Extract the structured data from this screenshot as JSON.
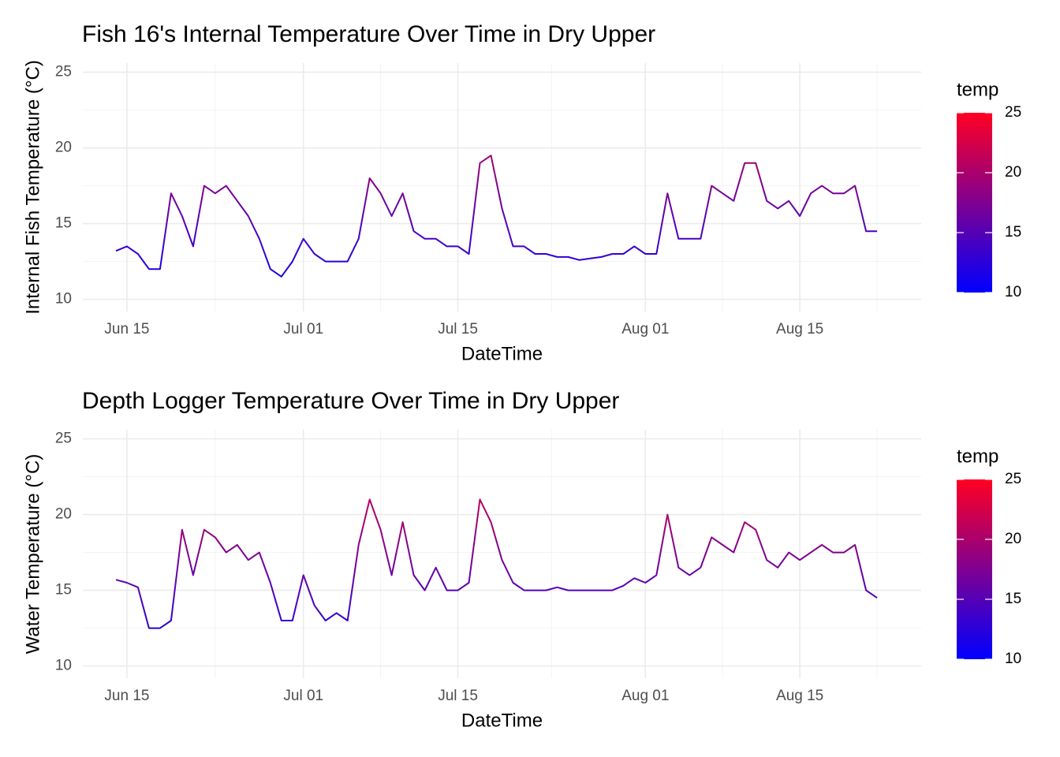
{
  "chart_data": [
    {
      "type": "line",
      "title": "Fish 16's Internal Temperature Over Time in Dry Upper",
      "x_label": "DateTime",
      "y_label": "Internal Fish Temperature (°C)",
      "x": [
        "Jun 14",
        "Jun 15",
        "Jun 16",
        "Jun 17",
        "Jun 18",
        "Jun 19",
        "Jun 20",
        "Jun 21",
        "Jun 22",
        "Jun 23",
        "Jun 24",
        "Jun 25",
        "Jun 26",
        "Jun 27",
        "Jun 28",
        "Jun 29",
        "Jun 30",
        "Jul 01",
        "Jul 02",
        "Jul 03",
        "Jul 04",
        "Jul 05",
        "Jul 06",
        "Jul 07",
        "Jul 08",
        "Jul 09",
        "Jul 10",
        "Jul 11",
        "Jul 12",
        "Jul 13",
        "Jul 14",
        "Jul 15",
        "Jul 16",
        "Jul 17",
        "Jul 18",
        "Jul 19",
        "Jul 20",
        "Jul 21",
        "Jul 22",
        "Jul 23",
        "Jul 24",
        "Jul 25",
        "Jul 26",
        "Jul 27",
        "Jul 28",
        "Jul 29",
        "Jul 30",
        "Jul 31",
        "Aug 01",
        "Aug 02",
        "Aug 03",
        "Aug 04",
        "Aug 05",
        "Aug 06",
        "Aug 07",
        "Aug 08",
        "Aug 09",
        "Aug 10",
        "Aug 11",
        "Aug 12",
        "Aug 13",
        "Aug 14",
        "Aug 15",
        "Aug 16",
        "Aug 17",
        "Aug 18",
        "Aug 19",
        "Aug 20",
        "Aug 21",
        "Aug 22"
      ],
      "values": [
        13.2,
        13.5,
        13,
        12,
        12,
        17,
        15.5,
        13.5,
        17.5,
        17,
        17.5,
        16.5,
        15.5,
        14,
        12,
        11.5,
        12.5,
        14,
        13,
        12.5,
        12.5,
        12.5,
        14,
        18,
        17,
        15.5,
        17,
        14.5,
        14,
        14,
        13.5,
        13.5,
        13,
        19,
        19.5,
        16,
        13.5,
        13.5,
        13,
        13,
        12.8,
        12.8,
        12.6,
        12.7,
        12.8,
        13,
        13,
        13.5,
        13,
        13,
        17,
        14,
        14,
        14,
        17.5,
        17,
        16.5,
        19,
        19,
        16.5,
        16,
        16.5,
        15.5,
        17,
        17.5,
        17,
        17,
        17.5,
        14.5,
        14.5
      ],
      "xlim": [
        "Jun 11",
        "Aug 26"
      ],
      "xticks": [
        "Jun 15",
        "Jul 01",
        "Jul 15",
        "Aug 01",
        "Aug 15"
      ],
      "ylim": [
        9.2,
        25.6
      ],
      "yticks": [
        10,
        15,
        20,
        25
      ],
      "grid": true,
      "color_scale": {
        "title": "temp",
        "limits": [
          10,
          25
        ],
        "ticks": [
          10,
          15,
          20,
          25
        ],
        "low": "#0000ff",
        "high": "#ff0022"
      }
    },
    {
      "type": "line",
      "title": "Depth Logger Temperature Over Time in Dry Upper",
      "x_label": "DateTime",
      "y_label": "Water Temperature (°C)",
      "x": [
        "Jun 14",
        "Jun 15",
        "Jun 16",
        "Jun 17",
        "Jun 18",
        "Jun 19",
        "Jun 20",
        "Jun 21",
        "Jun 22",
        "Jun 23",
        "Jun 24",
        "Jun 25",
        "Jun 26",
        "Jun 27",
        "Jun 28",
        "Jun 29",
        "Jun 30",
        "Jul 01",
        "Jul 02",
        "Jul 03",
        "Jul 04",
        "Jul 05",
        "Jul 06",
        "Jul 07",
        "Jul 08",
        "Jul 09",
        "Jul 10",
        "Jul 11",
        "Jul 12",
        "Jul 13",
        "Jul 14",
        "Jul 15",
        "Jul 16",
        "Jul 17",
        "Jul 18",
        "Jul 19",
        "Jul 20",
        "Jul 21",
        "Jul 22",
        "Jul 23",
        "Jul 24",
        "Jul 25",
        "Jul 26",
        "Jul 27",
        "Jul 28",
        "Jul 29",
        "Jul 30",
        "Jul 31",
        "Aug 01",
        "Aug 02",
        "Aug 03",
        "Aug 04",
        "Aug 05",
        "Aug 06",
        "Aug 07",
        "Aug 08",
        "Aug 09",
        "Aug 10",
        "Aug 11",
        "Aug 12",
        "Aug 13",
        "Aug 14",
        "Aug 15",
        "Aug 16",
        "Aug 17",
        "Aug 18",
        "Aug 19",
        "Aug 20",
        "Aug 21",
        "Aug 22"
      ],
      "values": [
        15.7,
        15.5,
        15.2,
        12.5,
        12.5,
        13,
        19,
        16,
        19,
        18.5,
        17.5,
        18,
        17,
        17.5,
        15.5,
        13,
        13,
        16,
        14,
        13,
        13.5,
        13,
        18,
        21,
        19,
        16,
        19.5,
        16,
        15,
        16.5,
        15,
        15,
        15.5,
        21,
        19.5,
        17,
        15.5,
        15,
        15,
        15,
        15.2,
        15,
        15,
        15,
        15,
        15,
        15.3,
        15.8,
        15.5,
        16,
        20,
        16.5,
        16,
        16.5,
        18.5,
        18,
        17.5,
        19.5,
        19,
        17,
        16.5,
        17.5,
        17,
        17.5,
        18,
        17.5,
        17.5,
        18,
        15,
        14.5
      ],
      "xlim": [
        "Jun 11",
        "Aug 26"
      ],
      "xticks": [
        "Jun 15",
        "Jul 01",
        "Jul 15",
        "Aug 01",
        "Aug 15"
      ],
      "ylim": [
        9.2,
        25.6
      ],
      "yticks": [
        10,
        15,
        20,
        25
      ],
      "grid": true,
      "color_scale": {
        "title": "temp",
        "limits": [
          10,
          25
        ],
        "ticks": [
          10,
          15,
          20,
          25
        ],
        "low": "#0000ff",
        "high": "#ff0022"
      }
    }
  ]
}
